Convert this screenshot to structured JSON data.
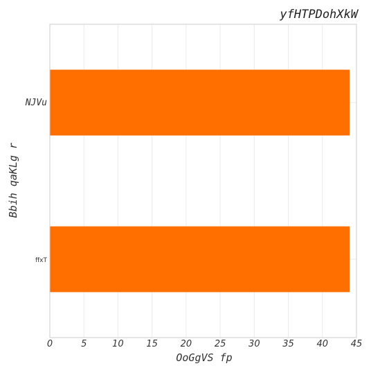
{
  "chart_data": {
    "type": "bar",
    "orientation": "horizontal",
    "title": "yfHTPDohXkW",
    "xlabel": "OoGgVS fp",
    "ylabel": "Bbih qaKLg r",
    "categories": [
      "NJVu",
      "ffxT"
    ],
    "series": [
      {
        "values": [
          44,
          44
        ],
        "color": "#ff6f00"
      }
    ],
    "xlim": [
      0,
      45
    ],
    "x_ticks": [
      0,
      5,
      10,
      15,
      20,
      25,
      30,
      35,
      40,
      45
    ],
    "grid": true,
    "legend": "none"
  }
}
